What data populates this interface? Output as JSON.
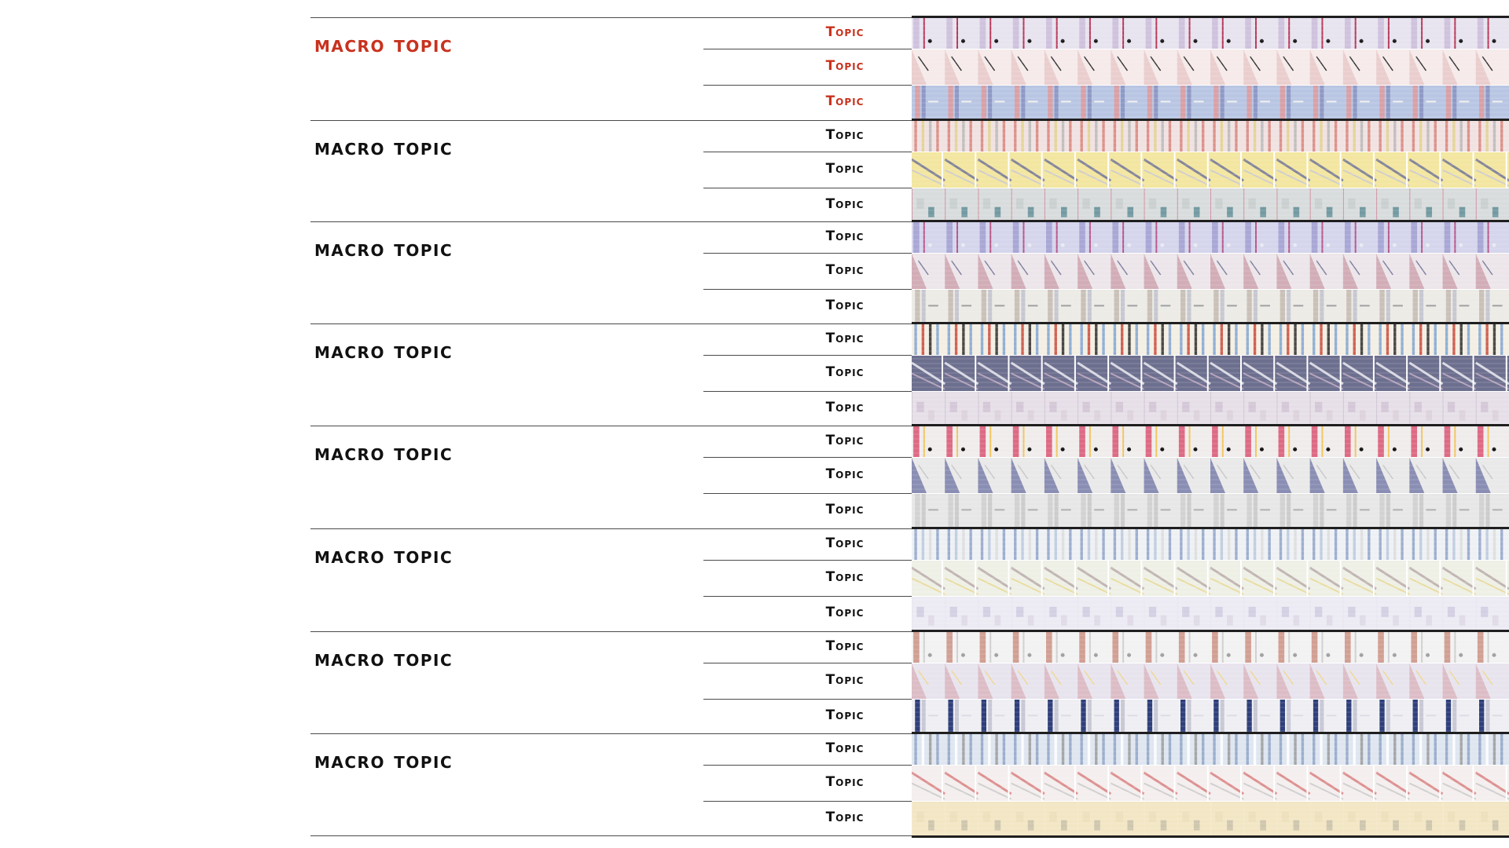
{
  "colors": {
    "active": "#c8321e",
    "text": "#111111",
    "line": "#4a4a4a"
  },
  "groups": [
    {
      "macro": "Macro Topic",
      "active": true,
      "topics": [
        "Topic",
        "Topic",
        "Topic"
      ]
    },
    {
      "macro": "Macro Topic",
      "active": false,
      "topics": [
        "Topic",
        "Topic",
        "Topic"
      ]
    },
    {
      "macro": "Macro Topic",
      "active": false,
      "topics": [
        "Topic",
        "Topic",
        "Topic"
      ]
    },
    {
      "macro": "Macro Topic",
      "active": false,
      "topics": [
        "Topic",
        "Topic",
        "Topic"
      ]
    },
    {
      "macro": "Macro Topic",
      "active": false,
      "topics": [
        "Topic",
        "Topic",
        "Topic"
      ]
    },
    {
      "macro": "Macro Topic",
      "active": false,
      "topics": [
        "Topic",
        "Topic",
        "Topic"
      ]
    },
    {
      "macro": "Macro Topic",
      "active": false,
      "topics": [
        "Topic",
        "Topic",
        "Topic"
      ]
    },
    {
      "macro": "Macro Topic",
      "active": false,
      "topics": [
        "Topic",
        "Topic",
        "Topic"
      ]
    }
  ]
}
